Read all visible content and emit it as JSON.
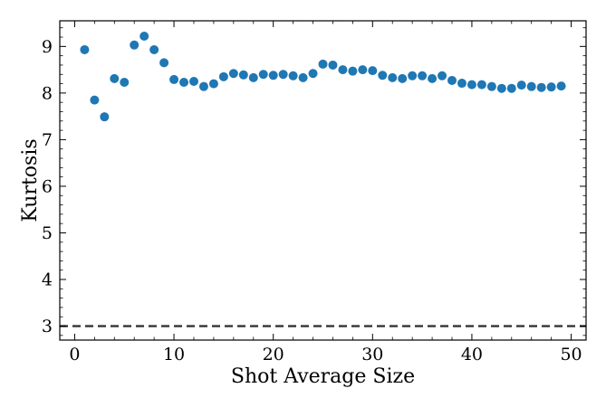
{
  "chart_data": {
    "type": "scatter",
    "xlabel": "Shot Average Size",
    "ylabel": "Kurtosis",
    "xlim": [
      -1.5,
      51.5
    ],
    "ylim": [
      2.7,
      9.55
    ],
    "x_ticks": [
      0,
      10,
      20,
      30,
      40,
      50
    ],
    "y_ticks": [
      3,
      4,
      5,
      6,
      7,
      8,
      9
    ],
    "x_minor_step": 2,
    "y_minor_step": 0.2,
    "reference_line": {
      "y": 3,
      "style": "dashed",
      "color": "#333333"
    },
    "marker_color": "#1f77b4",
    "grid": false,
    "points": [
      [
        1,
        8.93
      ],
      [
        2,
        7.85
      ],
      [
        3,
        7.49
      ],
      [
        4,
        8.31
      ],
      [
        5,
        8.23
      ],
      [
        6,
        9.03
      ],
      [
        7,
        9.22
      ],
      [
        8,
        8.93
      ],
      [
        9,
        8.65
      ],
      [
        10,
        8.29
      ],
      [
        11,
        8.23
      ],
      [
        12,
        8.25
      ],
      [
        13,
        8.14
      ],
      [
        14,
        8.2
      ],
      [
        15,
        8.35
      ],
      [
        16,
        8.42
      ],
      [
        17,
        8.39
      ],
      [
        18,
        8.33
      ],
      [
        19,
        8.4
      ],
      [
        20,
        8.38
      ],
      [
        21,
        8.4
      ],
      [
        22,
        8.37
      ],
      [
        23,
        8.33
      ],
      [
        24,
        8.42
      ],
      [
        25,
        8.62
      ],
      [
        26,
        8.6
      ],
      [
        27,
        8.5
      ],
      [
        28,
        8.47
      ],
      [
        29,
        8.5
      ],
      [
        30,
        8.48
      ],
      [
        31,
        8.38
      ],
      [
        32,
        8.33
      ],
      [
        33,
        8.31
      ],
      [
        34,
        8.37
      ],
      [
        35,
        8.37
      ],
      [
        36,
        8.31
      ],
      [
        37,
        8.37
      ],
      [
        38,
        8.27
      ],
      [
        39,
        8.21
      ],
      [
        40,
        8.18
      ],
      [
        41,
        8.18
      ],
      [
        42,
        8.14
      ],
      [
        43,
        8.1
      ],
      [
        44,
        8.1
      ],
      [
        45,
        8.17
      ],
      [
        46,
        8.14
      ],
      [
        47,
        8.12
      ],
      [
        48,
        8.13
      ],
      [
        49,
        8.15
      ]
    ]
  }
}
